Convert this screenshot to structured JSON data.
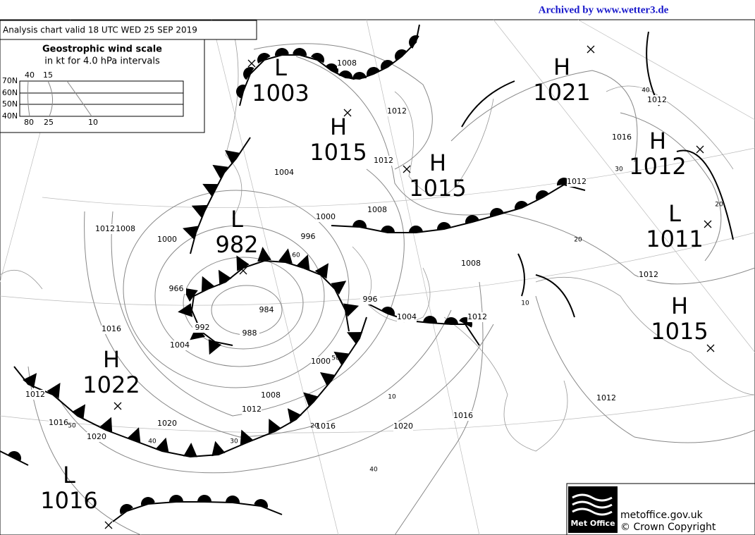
{
  "header": {
    "archive": "Archived by www.wetter3.de",
    "title": "Analysis chart  valid 18 UTC WED 25  SEP 2019"
  },
  "wind_scale": {
    "title": "Geostrophic wind scale",
    "subtitle": "in kt for 4.0 hPa intervals",
    "latitudes": [
      "70N",
      "60N",
      "50N",
      "40N"
    ],
    "top_labels": [
      "40",
      "15"
    ],
    "bottom_labels": [
      "80",
      "25",
      "10"
    ]
  },
  "pressure_centers": [
    {
      "symbol": "L",
      "pressure": "1003"
    },
    {
      "symbol": "H",
      "pressure": "1015"
    },
    {
      "symbol": "H",
      "pressure": "1021"
    },
    {
      "symbol": "H",
      "pressure": "1015"
    },
    {
      "symbol": "H",
      "pressure": "1012"
    },
    {
      "symbol": "L",
      "pressure": "1011"
    },
    {
      "symbol": "L",
      "pressure": "982"
    },
    {
      "symbol": "H",
      "pressure": "1015"
    },
    {
      "symbol": "H",
      "pressure": "1022"
    },
    {
      "symbol": "L",
      "pressure": "1016"
    }
  ],
  "isobar_labels": [
    "1008",
    "1012",
    "1012",
    "1004",
    "1008",
    "1000",
    "996",
    "1012",
    "1008",
    "1000",
    "966",
    "1016",
    "1004",
    "992",
    "988",
    "984",
    "1000",
    "1008",
    "1012",
    "1016",
    "1020",
    "1020",
    "1020",
    "1016",
    "1012",
    "1016",
    "1012",
    "1012",
    "1008",
    "1004",
    "996",
    "1012",
    "1012",
    "1016",
    "1012"
  ],
  "wind_labels": [
    "50",
    "40",
    "30",
    "20",
    "10",
    "40",
    "20",
    "10",
    "30",
    "50",
    "60",
    "40",
    "20"
  ],
  "footer": {
    "logo": "Met Office",
    "site": "metoffice.gov.uk",
    "copyright": "© Crown Copyright"
  }
}
